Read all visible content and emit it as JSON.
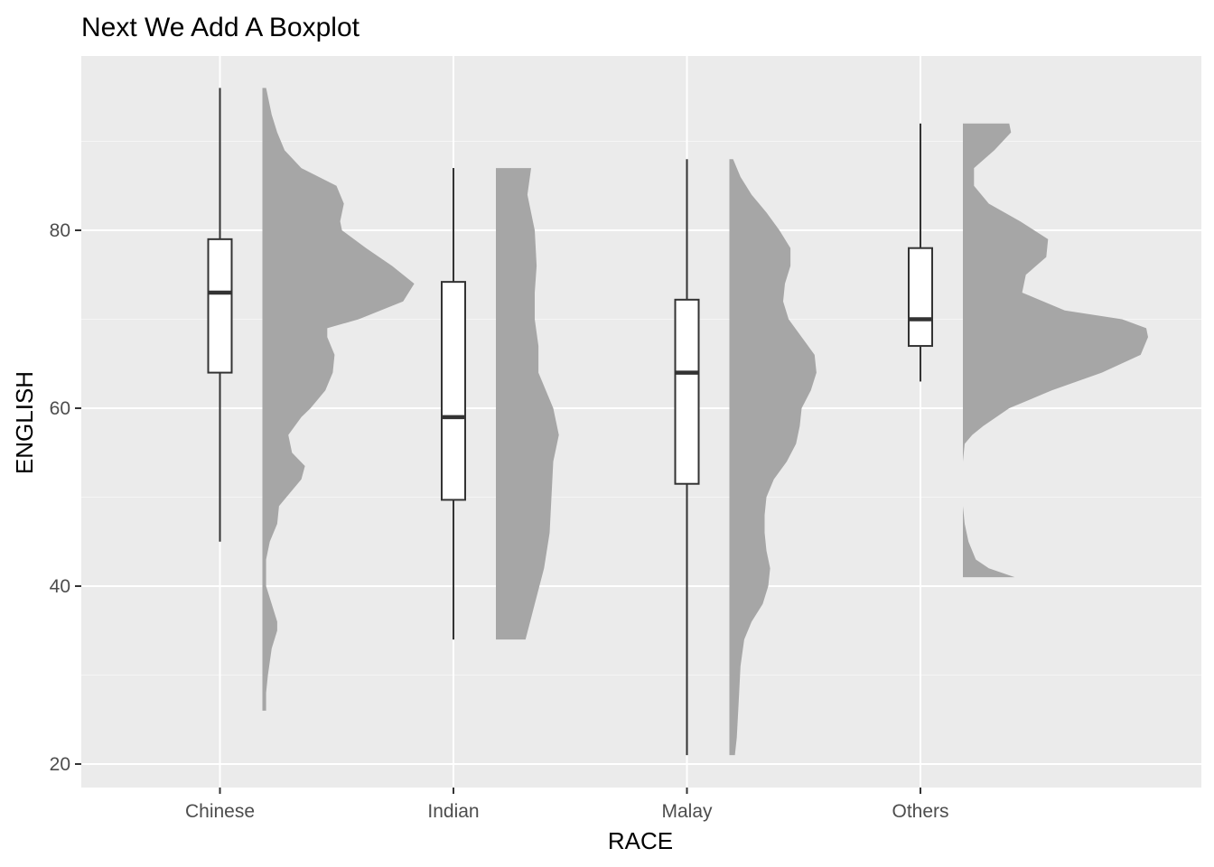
{
  "chart_data": {
    "type": "raincloud",
    "title": "Next We Add A Boxplot",
    "xlabel": "RACE",
    "ylabel": "ENGLISH",
    "ylim": [
      17,
      99
    ],
    "yticks": [
      20,
      40,
      60,
      80
    ],
    "grid": true,
    "categories": [
      "Chinese",
      "Indian",
      "Malay",
      "Others"
    ],
    "boxplots": [
      {
        "category": "Chinese",
        "min": 45,
        "q1": 64,
        "median": 73,
        "q3": 79,
        "max": 96
      },
      {
        "category": "Indian",
        "min": 34,
        "q1": 49.7,
        "median": 59,
        "q3": 74.2,
        "max": 87
      },
      {
        "category": "Malay",
        "min": 21,
        "q1": 51.5,
        "median": 64,
        "q3": 72.2,
        "max": 88
      },
      {
        "category": "Others",
        "min": 63,
        "q1": 67,
        "median": 70,
        "q3": 78,
        "max": 92
      }
    ],
    "densities": [
      {
        "category": "Chinese",
        "color": "#A6A6A6",
        "points": [
          [
            26,
            0.02
          ],
          [
            28,
            0.02
          ],
          [
            30,
            0.03
          ],
          [
            33,
            0.05
          ],
          [
            35,
            0.08
          ],
          [
            36,
            0.08
          ],
          [
            38,
            0.05
          ],
          [
            40,
            0.02
          ],
          [
            43,
            0.02
          ],
          [
            45,
            0.04
          ],
          [
            47,
            0.08
          ],
          [
            49,
            0.09
          ],
          [
            50,
            0.13
          ],
          [
            52,
            0.21
          ],
          [
            53.5,
            0.23
          ],
          [
            55,
            0.16
          ],
          [
            57,
            0.14
          ],
          [
            59,
            0.21
          ],
          [
            60,
            0.26
          ],
          [
            62,
            0.34
          ],
          [
            64,
            0.38
          ],
          [
            66,
            0.39
          ],
          [
            68,
            0.35
          ],
          [
            69,
            0.35
          ],
          [
            70,
            0.52
          ],
          [
            72,
            0.76
          ],
          [
            74,
            0.82
          ],
          [
            76,
            0.7
          ],
          [
            78,
            0.56
          ],
          [
            80,
            0.43
          ],
          [
            81,
            0.42
          ],
          [
            83,
            0.44
          ],
          [
            85,
            0.4
          ],
          [
            87,
            0.21
          ],
          [
            89,
            0.12
          ],
          [
            91,
            0.08
          ],
          [
            93,
            0.05
          ],
          [
            96,
            0.02
          ]
        ]
      },
      {
        "category": "Indian",
        "color": "#A6A6A6",
        "points": [
          [
            34,
            0.16
          ],
          [
            38,
            0.21
          ],
          [
            42,
            0.26
          ],
          [
            46,
            0.29
          ],
          [
            50,
            0.3
          ],
          [
            54,
            0.31
          ],
          [
            57,
            0.34
          ],
          [
            60,
            0.31
          ],
          [
            64,
            0.23
          ],
          [
            67,
            0.23
          ],
          [
            70,
            0.21
          ],
          [
            73,
            0.21
          ],
          [
            76,
            0.22
          ],
          [
            80,
            0.21
          ],
          [
            84,
            0.17
          ],
          [
            87,
            0.19
          ]
        ]
      },
      {
        "category": "Malay",
        "color": "#A6A6A6",
        "points": [
          [
            21,
            0.03
          ],
          [
            23,
            0.04
          ],
          [
            27,
            0.05
          ],
          [
            31,
            0.06
          ],
          [
            34,
            0.08
          ],
          [
            36,
            0.12
          ],
          [
            38,
            0.18
          ],
          [
            40,
            0.21
          ],
          [
            42,
            0.22
          ],
          [
            44,
            0.2
          ],
          [
            46,
            0.19
          ],
          [
            48,
            0.19
          ],
          [
            50,
            0.2
          ],
          [
            52,
            0.24
          ],
          [
            54,
            0.31
          ],
          [
            56,
            0.36
          ],
          [
            58,
            0.38
          ],
          [
            60,
            0.39
          ],
          [
            62,
            0.44
          ],
          [
            64,
            0.47
          ],
          [
            66,
            0.46
          ],
          [
            68,
            0.39
          ],
          [
            70,
            0.32
          ],
          [
            72,
            0.29
          ],
          [
            74,
            0.3
          ],
          [
            76,
            0.33
          ],
          [
            78,
            0.33
          ],
          [
            80,
            0.27
          ],
          [
            82,
            0.2
          ],
          [
            84,
            0.12
          ],
          [
            86,
            0.06
          ],
          [
            88,
            0.02
          ]
        ]
      },
      {
        "category": "Others",
        "color": "#A6A6A6",
        "points": [
          [
            41,
            0.28
          ],
          [
            42,
            0.14
          ],
          [
            43,
            0.07
          ],
          [
            45,
            0.03
          ],
          [
            47,
            0.01
          ],
          [
            49,
            0.0
          ],
          [
            50,
            0.0
          ],
          [
            54,
            0.0
          ],
          [
            56,
            0.01
          ],
          [
            57,
            0.05
          ],
          [
            58,
            0.11
          ],
          [
            60,
            0.25
          ],
          [
            62,
            0.48
          ],
          [
            64,
            0.75
          ],
          [
            66,
            0.96
          ],
          [
            68,
            1.0
          ],
          [
            69,
            0.99
          ],
          [
            70,
            0.86
          ],
          [
            71,
            0.55
          ],
          [
            73,
            0.32
          ],
          [
            75,
            0.34
          ],
          [
            77,
            0.45
          ],
          [
            79,
            0.46
          ],
          [
            81,
            0.31
          ],
          [
            83,
            0.14
          ],
          [
            85,
            0.06
          ],
          [
            87,
            0.06
          ],
          [
            89,
            0.17
          ],
          [
            91,
            0.26
          ],
          [
            92,
            0.25
          ]
        ]
      }
    ],
    "colors": {
      "panel": "#EBEBEB",
      "gridMajor": "#FFFFFF",
      "gridMinor": "#F5F5F5",
      "density": "#A6A6A6",
      "boxFill": "#FFFFFF",
      "boxLine": "#333333"
    }
  }
}
